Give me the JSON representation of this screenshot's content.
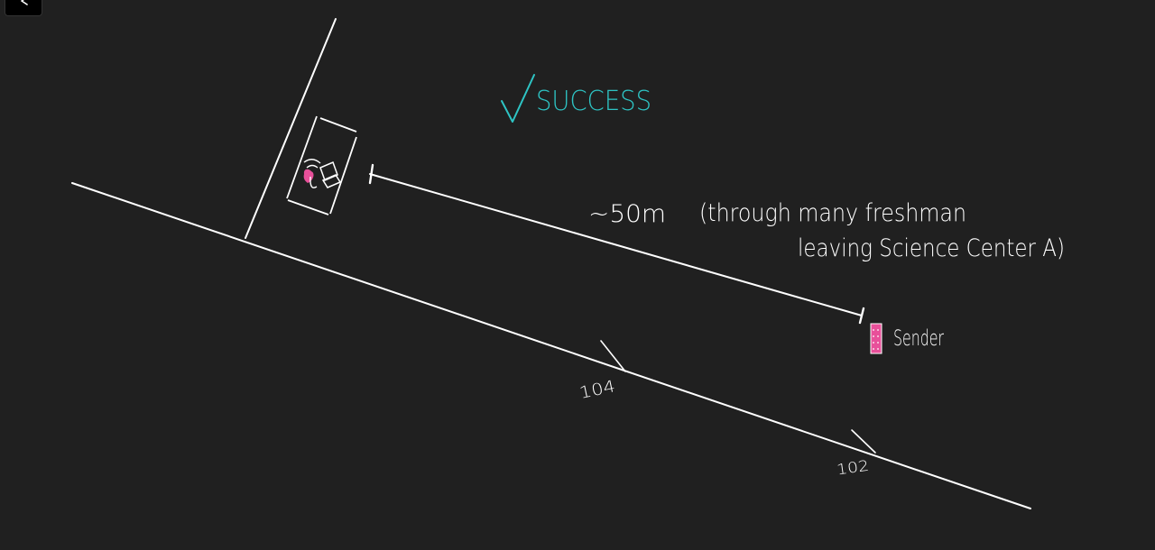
{
  "toolbar": {
    "back_icon": "chevron-left-icon"
  },
  "colors": {
    "background": "#202020",
    "stroke": "#ffffff",
    "success": "#2ec4c4",
    "sender": "#e8509a"
  },
  "drawing": {
    "success_check": "√",
    "success_text": "SUCCESS",
    "distance_label": "~50m",
    "note_line1": "(through many freshman",
    "note_line2": "leaving Science Center A)",
    "sender_label": "Sender",
    "room_104": "104",
    "room_102": "102"
  }
}
